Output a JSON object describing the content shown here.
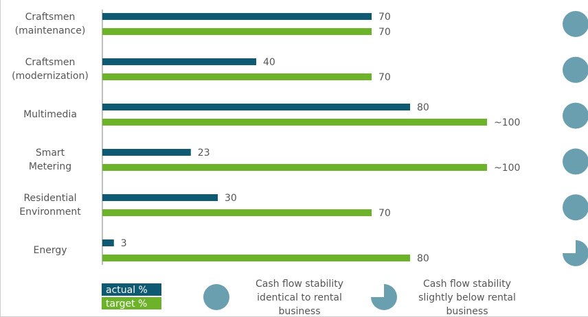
{
  "chart_data": {
    "type": "bar",
    "orientation": "horizontal",
    "categories": [
      "Craftsmen\n(maintenance)",
      "Craftsmen\n(modernization)",
      "Multimedia",
      "Smart\nMetering",
      "Residential\nEnvironment",
      "Energy"
    ],
    "series": [
      {
        "name": "actual %",
        "color": "#0e5a73",
        "values": [
          70,
          40,
          80,
          23,
          30,
          3
        ]
      },
      {
        "name": "target %",
        "color": "#6db32a",
        "values": [
          70,
          70,
          100,
          100,
          70,
          80
        ],
        "value_labels": [
          "70",
          "70",
          "~100",
          "~100",
          "70",
          "80"
        ]
      }
    ],
    "xlim": [
      0,
      100
    ],
    "stability": {
      "color": "#6a9fb0",
      "values": [
        1,
        1,
        1,
        1,
        1,
        0.75
      ]
    },
    "stability_legend": [
      {
        "label": "Cash flow stability\nidentical to rental\nbusiness",
        "value": 1
      },
      {
        "label": "Cash flow stability\nslightly below rental\nbusiness",
        "value": 0.75
      }
    ]
  }
}
